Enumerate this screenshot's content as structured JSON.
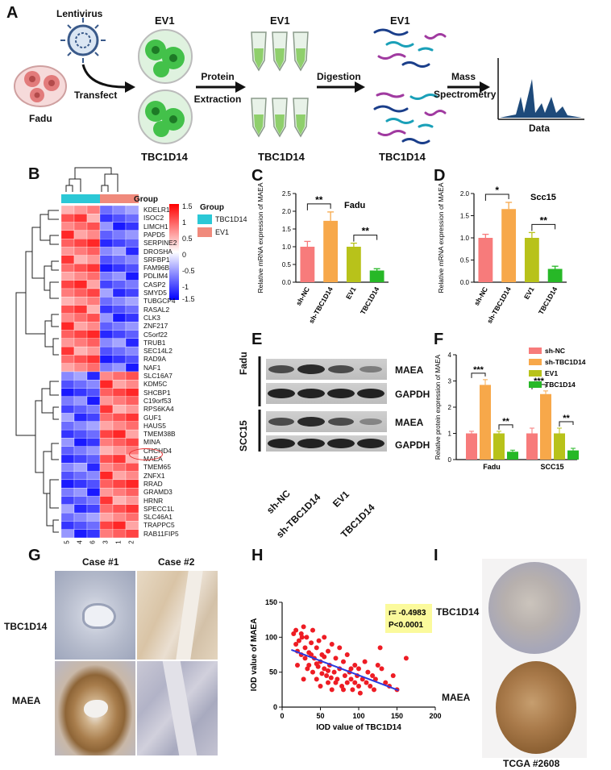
{
  "panels": {
    "A": "A",
    "B": "B",
    "C": "C",
    "D": "D",
    "E": "E",
    "F": "F",
    "G": "G",
    "H": "H",
    "I": "I"
  },
  "panelA": {
    "lentivirus": "Lentivirus",
    "fadu": "Fadu",
    "transfect": "Transfect",
    "ev1_1": "EV1",
    "ev1_2": "EV1",
    "ev1_3": "EV1",
    "protein": "Protein",
    "extraction": "Extraction",
    "digestion": "Digestion",
    "mass": "Mass",
    "spectrometry": "Spectrometry",
    "data": "Data",
    "tbc_1": "TBC1D14",
    "tbc_2": "TBC1D14",
    "tbc_3": "TBC1D14"
  },
  "panelB": {
    "group_label": "Group",
    "legend_title": "Group",
    "legend_items": [
      "TBC1D14",
      "EV1"
    ],
    "scale": [
      "1.5",
      "1",
      "0.5",
      "0",
      "-0.5",
      "-1",
      "-1.5"
    ],
    "genes": [
      "KDELR1",
      "ISOC2",
      "LIMCH1",
      "PAPD5",
      "SERPINE2",
      "DROSHA",
      "SRFBP1",
      "FAM96B",
      "PDLIM4",
      "CASP2",
      "SMYD5",
      "TUBGCP4",
      "RASAL2",
      "CLK3",
      "ZNF217",
      "C5orf22",
      "TRUB1",
      "SEC14L2",
      "RAD9A",
      "NAF1",
      "SLC16A7",
      "KDM5C",
      "SHCBP1",
      "C19orf53",
      "RPS6KA4",
      "GUF1",
      "HAUS5",
      "TMEM38B",
      "MINA",
      "CHCHD4",
      "MAEA",
      "TMEM65",
      "ZNFX1",
      "RRAD",
      "GRAMD3",
      "HRNR",
      "SPECC1L",
      "SLC46A1",
      "TRAPPC5",
      "RAB11FIP5"
    ],
    "columns": [
      "5",
      "4",
      "6",
      "3",
      "1",
      "2"
    ]
  },
  "chart_data": [
    {
      "type": "bar",
      "title": "Fadu",
      "ylabel": "Relative mRNA expression of MAEA",
      "ylim": [
        0,
        2.5
      ],
      "categories": [
        "sh-NC",
        "sh-TBC1D14",
        "EV1",
        "TBC1D14"
      ],
      "values": [
        1.0,
        1.73,
        1.0,
        0.33
      ],
      "errors": [
        0.15,
        0.25,
        0.1,
        0.05
      ],
      "colors": [
        "#f77b7b",
        "#f7a84a",
        "#b8c21a",
        "#27b827"
      ],
      "yticks": [
        "0.0",
        "0.5",
        "1.0",
        "1.5",
        "2.0",
        "2.5"
      ],
      "annotations": [
        "**",
        "**"
      ]
    },
    {
      "type": "bar",
      "title": "Scc15",
      "ylabel": "Relative mRNA expression of MAEA",
      "ylim": [
        0,
        2.0
      ],
      "categories": [
        "sh-NC",
        "sh-TBC1D14",
        "EV1",
        "TBC1D14"
      ],
      "values": [
        1.0,
        1.65,
        1.0,
        0.3
      ],
      "errors": [
        0.08,
        0.15,
        0.12,
        0.06
      ],
      "colors": [
        "#f77b7b",
        "#f7a84a",
        "#b8c21a",
        "#27b827"
      ],
      "yticks": [
        "0.0",
        "0.5",
        "1.0",
        "1.5",
        "2.0"
      ],
      "annotations": [
        "*",
        "**"
      ]
    },
    {
      "type": "bar",
      "ylabel": "Relative protein expression of MAEA",
      "ylim": [
        0,
        4
      ],
      "categories": [
        "Fadu",
        "SCC15"
      ],
      "series": [
        {
          "name": "sh-NC",
          "values": [
            1.0,
            1.0
          ]
        },
        {
          "name": "sh-TBC1D14",
          "values": [
            2.85,
            2.5
          ]
        },
        {
          "name": "EV1",
          "values": [
            1.0,
            1.0
          ]
        },
        {
          "name": "TBC1D14",
          "values": [
            0.3,
            0.35
          ]
        }
      ],
      "colors": [
        "#f77b7b",
        "#f7a84a",
        "#b8c21a",
        "#27b827"
      ],
      "yticks": [
        "0",
        "1",
        "2",
        "3",
        "4"
      ],
      "annotations": [
        "***",
        "**",
        "***",
        "**"
      ]
    },
    {
      "type": "scatter",
      "xlabel": "IOD value of TBC1D14",
      "ylabel": "IOD value of MAEA",
      "xlim": [
        0,
        200
      ],
      "ylim": [
        0,
        150
      ],
      "xticks": [
        "0",
        "50",
        "100",
        "150",
        "200"
      ],
      "yticks": [
        "0",
        "50",
        "100",
        "150"
      ],
      "annotation": {
        "r": "r= -0.4983",
        "p": "P<0.0001"
      },
      "fit": {
        "x": [
          12,
          152
        ],
        "y": [
          82,
          24
        ]
      },
      "points": [
        [
          15,
          105
        ],
        [
          18,
          90
        ],
        [
          20,
          80
        ],
        [
          22,
          95
        ],
        [
          25,
          75
        ],
        [
          25,
          105
        ],
        [
          28,
          115
        ],
        [
          30,
          70
        ],
        [
          30,
          85
        ],
        [
          32,
          100
        ],
        [
          35,
          60
        ],
        [
          35,
          78
        ],
        [
          38,
          92
        ],
        [
          40,
          110
        ],
        [
          40,
          50
        ],
        [
          42,
          70
        ],
        [
          45,
          85
        ],
        [
          45,
          40
        ],
        [
          48,
          95
        ],
        [
          50,
          65
        ],
        [
          50,
          30
        ],
        [
          52,
          75
        ],
        [
          55,
          55
        ],
        [
          55,
          100
        ],
        [
          58,
          45
        ],
        [
          60,
          80
        ],
        [
          60,
          35
        ],
        [
          62,
          60
        ],
        [
          65,
          90
        ],
        [
          65,
          25
        ],
        [
          68,
          50
        ],
        [
          70,
          70
        ],
        [
          72,
          40
        ],
        [
          75,
          55
        ],
        [
          75,
          85
        ],
        [
          78,
          30
        ],
        [
          80,
          65
        ],
        [
          82,
          45
        ],
        [
          85,
          35
        ],
        [
          85,
          75
        ],
        [
          88,
          50
        ],
        [
          90,
          40
        ],
        [
          92,
          25
        ],
        [
          95,
          60
        ],
        [
          95,
          35
        ],
        [
          98,
          45
        ],
        [
          100,
          30
        ],
        [
          100,
          55
        ],
        [
          102,
          20
        ],
        [
          105,
          40
        ],
        [
          108,
          65
        ],
        [
          110,
          35
        ],
        [
          112,
          50
        ],
        [
          115,
          30
        ],
        [
          118,
          45
        ],
        [
          120,
          25
        ],
        [
          122,
          40
        ],
        [
          125,
          60
        ],
        [
          128,
          85
        ],
        [
          130,
          55
        ],
        [
          135,
          35
        ],
        [
          140,
          30
        ],
        [
          145,
          45
        ],
        [
          150,
          25
        ],
        [
          162,
          70
        ],
        [
          20,
          60
        ],
        [
          28,
          40
        ],
        [
          33,
          55
        ],
        [
          45,
          62
        ],
        [
          52,
          48
        ],
        [
          60,
          52
        ],
        [
          70,
          35
        ],
        [
          80,
          25
        ],
        [
          18,
          110
        ],
        [
          26,
          100
        ],
        [
          38,
          75
        ],
        [
          47,
          58
        ],
        [
          55,
          72
        ],
        [
          64,
          42
        ],
        [
          90,
          55
        ]
      ]
    }
  ],
  "panelE": {
    "fadu": "Fadu",
    "scc15": "SCC15",
    "blots": [
      "MAEA",
      "GAPDH",
      "MAEA",
      "GAPDH"
    ],
    "lanes": [
      "sh-NC",
      "sh-TBC1D14",
      "EV1",
      "TBC1D14"
    ]
  },
  "panelG": {
    "case1": "Case #1",
    "case2": "Case #2",
    "row1": "TBC1D14",
    "row2": "MAEA"
  },
  "panelI": {
    "row1": "TBC1D14",
    "row2": "MAEA",
    "caption": "TCGA #2608"
  }
}
